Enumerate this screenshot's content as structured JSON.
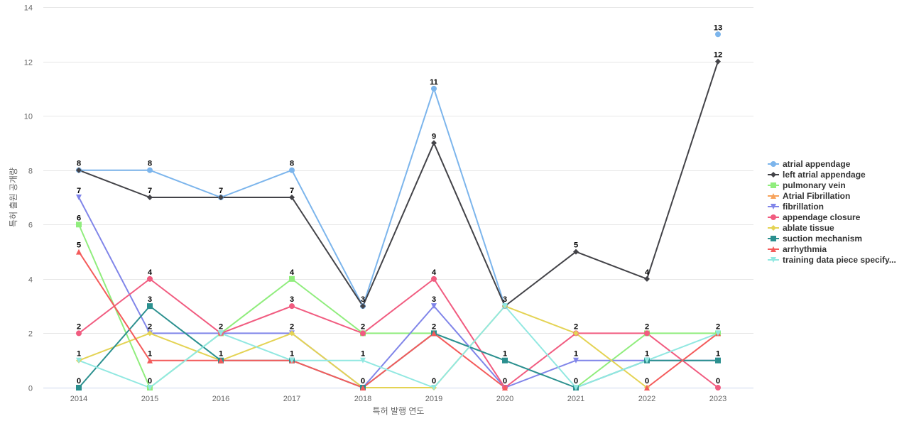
{
  "chart_data": {
    "type": "line",
    "title": "",
    "xlabel": "특허 발행 연도",
    "ylabel": "특허 출원 공개량",
    "x": [
      "2014",
      "2015",
      "2016",
      "2017",
      "2018",
      "2019",
      "2020",
      "2021",
      "2022",
      "2023"
    ],
    "ylim": [
      0,
      14
    ],
    "yticks": [
      0,
      2,
      4,
      6,
      8,
      10,
      12,
      14
    ],
    "grid": true,
    "legend_position": "right",
    "series": [
      {
        "name": "atrial appendage",
        "color": "#7cb5ec",
        "marker": "circle",
        "values": [
          8,
          8,
          7,
          8,
          3,
          11,
          3,
          null,
          null,
          13
        ]
      },
      {
        "name": "left atrial appendage",
        "color": "#434348",
        "marker": "diamond",
        "values": [
          8,
          7,
          7,
          7,
          3,
          9,
          3,
          5,
          4,
          12
        ]
      },
      {
        "name": "pulmonary vein",
        "color": "#90ed7d",
        "marker": "square",
        "values": [
          6,
          0,
          2,
          4,
          2,
          2,
          null,
          0,
          2,
          2
        ]
      },
      {
        "name": "Atrial Fibrillation",
        "color": "#f7a35c",
        "marker": "triangle",
        "values": [
          null,
          null,
          null,
          null,
          null,
          null,
          null,
          null,
          null,
          2
        ]
      },
      {
        "name": "fibrillation",
        "color": "#8085e9",
        "marker": "triangle-down",
        "values": [
          7,
          2,
          2,
          2,
          0,
          3,
          0,
          1,
          1,
          1
        ]
      },
      {
        "name": "appendage closure",
        "color": "#f15c80",
        "marker": "circle",
        "values": [
          2,
          4,
          2,
          3,
          2,
          4,
          0,
          2,
          2,
          0
        ]
      },
      {
        "name": "ablate tissue",
        "color": "#e4d354",
        "marker": "diamond",
        "values": [
          1,
          2,
          1,
          2,
          0,
          0,
          3,
          2,
          0,
          null
        ]
      },
      {
        "name": "suction mechanism",
        "color": "#2b908f",
        "marker": "square",
        "values": [
          0,
          3,
          1,
          1,
          0,
          2,
          1,
          0,
          1,
          1
        ]
      },
      {
        "name": "arrhythmia",
        "color": "#f45b5b",
        "marker": "triangle",
        "values": [
          5,
          1,
          1,
          1,
          0,
          2,
          0,
          null,
          0,
          2
        ]
      },
      {
        "name": "training data piece specify...",
        "color": "#91e8e1",
        "marker": "triangle-down",
        "values": [
          1,
          0,
          2,
          1,
          1,
          0,
          3,
          0,
          1,
          2
        ]
      }
    ],
    "data_labels": [
      {
        "x": "2014",
        "text": "8"
      },
      {
        "x": "2014",
        "text": "7"
      },
      {
        "x": "2014",
        "text": "6"
      },
      {
        "x": "2014",
        "text": "5"
      },
      {
        "x": "2014",
        "text": "2"
      },
      {
        "x": "2014",
        "text": "1"
      },
      {
        "x": "2014",
        "text": "0"
      },
      {
        "x": "2015",
        "text": "8"
      },
      {
        "x": "2015",
        "text": "7"
      },
      {
        "x": "2015",
        "text": "4"
      },
      {
        "x": "2015",
        "text": "3"
      },
      {
        "x": "2015",
        "text": "2"
      },
      {
        "x": "2015",
        "text": "1"
      },
      {
        "x": "2015",
        "text": "0"
      },
      {
        "x": "2016",
        "text": "7"
      },
      {
        "x": "2016",
        "text": "2"
      },
      {
        "x": "2016",
        "text": "1"
      },
      {
        "x": "2017",
        "text": "8"
      },
      {
        "x": "2017",
        "text": "7"
      },
      {
        "x": "2017",
        "text": "4"
      },
      {
        "x": "2017",
        "text": "3"
      },
      {
        "x": "2017",
        "text": "2"
      },
      {
        "x": "2017",
        "text": "1"
      },
      {
        "x": "2018",
        "text": "3"
      },
      {
        "x": "2018",
        "text": "2"
      },
      {
        "x": "2018",
        "text": "1"
      },
      {
        "x": "2018",
        "text": "0"
      },
      {
        "x": "2019",
        "text": "11"
      },
      {
        "x": "2019",
        "text": "9"
      },
      {
        "x": "2019",
        "text": "4"
      },
      {
        "x": "2019",
        "text": "3"
      },
      {
        "x": "2019",
        "text": "2"
      },
      {
        "x": "2019",
        "text": "0"
      },
      {
        "x": "2020",
        "text": "3"
      },
      {
        "x": "2020",
        "text": "1"
      },
      {
        "x": "2020",
        "text": "0"
      },
      {
        "x": "2021",
        "text": "5"
      },
      {
        "x": "2021",
        "text": "2"
      },
      {
        "x": "2021",
        "text": "1"
      },
      {
        "x": "2021",
        "text": "0"
      },
      {
        "x": "2022",
        "text": "4"
      },
      {
        "x": "2022",
        "text": "2"
      },
      {
        "x": "2022",
        "text": "1"
      },
      {
        "x": "2022",
        "text": "0"
      },
      {
        "x": "2023",
        "text": "13"
      },
      {
        "x": "2023",
        "text": "12"
      },
      {
        "x": "2023",
        "text": "2"
      },
      {
        "x": "2023",
        "text": "1"
      },
      {
        "x": "2023",
        "text": "0"
      }
    ]
  }
}
